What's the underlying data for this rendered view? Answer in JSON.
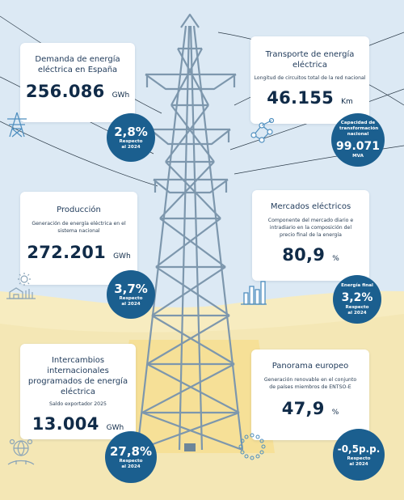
{
  "cards": {
    "demanda": {
      "title": "Demanda de energía eléctrica en España",
      "value": "256.086",
      "unit": "GWh"
    },
    "transporte": {
      "title": "Transporte de energía eléctrica",
      "subtitle": "Longitud de circuitos total de la red nacional",
      "value": "46.155",
      "unit": "Km"
    },
    "produccion": {
      "title": "Producción",
      "subtitle": "Generación de energía eléctrica en el sistema nacional",
      "value": "272.201",
      "unit": "GWh"
    },
    "mercados": {
      "title": "Mercados eléctricos",
      "subtitle": "Componente del mercado diario e intradiario en la composición del precio final de la energía",
      "value": "80,9",
      "unit": "%"
    },
    "intercambios": {
      "title": "Intercambios internacionales programados de energía eléctrica",
      "subtitle": "Saldo exportador 2025",
      "value": "13.004",
      "unit": "GWh"
    },
    "panorama": {
      "title": "Panorama europeo",
      "subtitle": "Generación renovable en el conjunto de países miembros de ENTSO-E",
      "value": "47,9",
      "unit": "%"
    }
  },
  "bubbles": {
    "demanda": {
      "value": "2,8%",
      "caption": "Respecto al 2024"
    },
    "transporte": {
      "top": "Capacidad de transformación nacional",
      "value": "99.071",
      "caption": "MVA"
    },
    "produccion": {
      "value": "3,7%",
      "caption": "Respecto al 2024"
    },
    "mercados": {
      "top": "Energía final",
      "value": "3,2%",
      "caption": "Respecto al 2024"
    },
    "intercambios": {
      "value": "27,8%",
      "caption": "Respecto al 2024"
    },
    "panorama": {
      "value": "-0,5p.p.",
      "caption": "Respecto al 2024"
    }
  },
  "colors": {
    "sky": "#dce9f4",
    "ground": "#f7ecc0",
    "tower": "#7d97ad",
    "bubble": "#1b5f8f",
    "value_text": "#102b48"
  },
  "icons": [
    "tower-icon",
    "network-icon",
    "solar-house-icon",
    "bar-chart-icon",
    "people-globe-icon",
    "eu-stars-icon"
  ]
}
